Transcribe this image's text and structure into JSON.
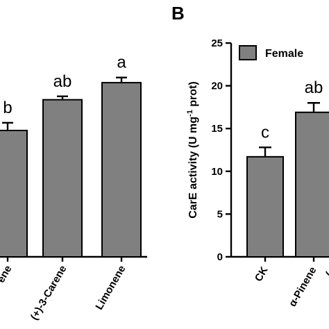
{
  "chart_data": [
    {
      "type": "bar",
      "categories": [
        "ene",
        "(+)-3-Carene",
        "Limonene"
      ],
      "values": [
        14.8,
        18.4,
        20.4
      ],
      "errors": [
        0.9,
        0.4,
        0.6
      ],
      "significance": [
        "b",
        "ab",
        "a"
      ],
      "ylim": [
        0,
        25
      ],
      "grid": false
    },
    {
      "type": "bar",
      "panel_label": "B",
      "categories": [
        "CK",
        "α-Pinene",
        "(+"
      ],
      "values": [
        11.7,
        16.9,
        null
      ],
      "errors": [
        1.1,
        1.1,
        null
      ],
      "significance": [
        "c",
        "ab",
        ""
      ],
      "series": [
        {
          "name": "Female",
          "values": [
            11.7,
            16.9,
            null
          ]
        }
      ],
      "ylabel": "CarE activity (U mg",
      "ylabel_sup": "-1",
      "ylabel_tail": " prot)",
      "yticks": [
        0,
        5,
        10,
        15,
        20,
        25
      ],
      "ylim": [
        0,
        25
      ],
      "legend": "top-left",
      "grid": false
    }
  ]
}
